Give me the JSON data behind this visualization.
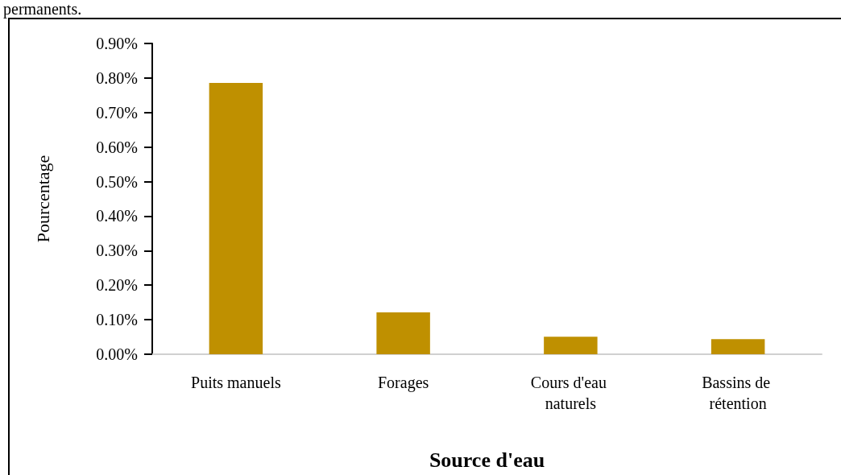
{
  "chart_data": {
    "type": "bar",
    "xlabel": "Source d'eau",
    "ylabel": "Pourcentage",
    "annotations": [
      "permanents."
    ],
    "categories": [
      "Puits manuels",
      "Forages",
      "Cours d'eau naturels",
      "Bassins de rétention"
    ],
    "values": [
      0.786,
      0.121,
      0.051,
      0.044
    ],
    "color": "#bf9000",
    "ylim": [
      0,
      0.9
    ],
    "yticks": [
      {
        "value": 0,
        "label": "0.00%"
      },
      {
        "value": 0.1,
        "label": "0.10%"
      },
      {
        "value": 0.2,
        "label": "0.20%"
      },
      {
        "value": 0.3,
        "label": "0.30%"
      },
      {
        "value": 0.4,
        "label": "0.40%"
      },
      {
        "value": 0.5,
        "label": "0.50%"
      },
      {
        "value": 0.6,
        "label": "0.60%"
      },
      {
        "value": 0.7,
        "label": "0.70%"
      },
      {
        "value": 0.8,
        "label": "0.80%"
      },
      {
        "value": 0.9,
        "label": "0.90%"
      }
    ],
    "grid": false
  }
}
